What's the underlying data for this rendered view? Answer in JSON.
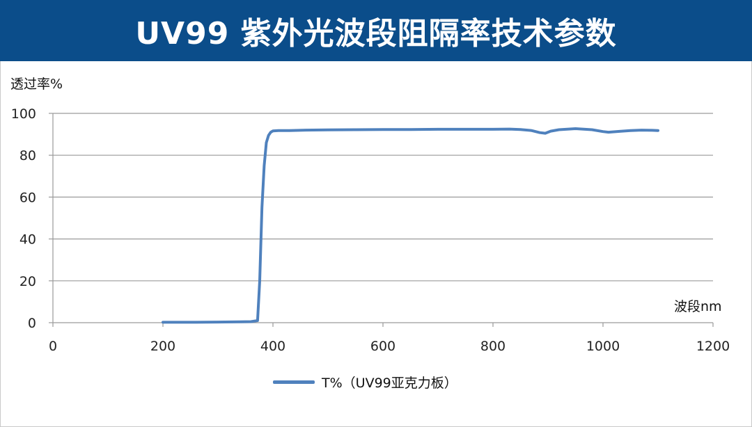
{
  "header": {
    "title": "UV99 紫外光波段阻隔率技术参数"
  },
  "chart_data": {
    "type": "line",
    "ylabel": "透过率%",
    "xlabel": "波段nm",
    "xlim": [
      0,
      1200
    ],
    "ylim": [
      0,
      100
    ],
    "xticks": [
      0,
      200,
      400,
      600,
      800,
      1000,
      1200
    ],
    "yticks": [
      0,
      20,
      40,
      60,
      80,
      100
    ],
    "grid": "horizontal",
    "legend_position": "bottom",
    "series": [
      {
        "name": "T%（UV99亚克力板）",
        "color": "#4f81bd",
        "x": [
          200,
          260,
          300,
          340,
          360,
          372,
          376,
          380,
          384,
          388,
          392,
          396,
          400,
          410,
          430,
          460,
          500,
          550,
          600,
          650,
          700,
          750,
          800,
          830,
          850,
          870,
          885,
          895,
          905,
          920,
          950,
          980,
          1000,
          1010,
          1030,
          1050,
          1070,
          1090,
          1100
        ],
        "y": [
          0.2,
          0.2,
          0.3,
          0.4,
          0.5,
          1,
          20,
          55,
          75,
          86,
          89.5,
          91,
          91.6,
          91.8,
          91.8,
          92,
          92.1,
          92.2,
          92.3,
          92.3,
          92.4,
          92.4,
          92.4,
          92.5,
          92.3,
          91.8,
          90.8,
          90.5,
          91.5,
          92.2,
          92.7,
          92.2,
          91.3,
          91.0,
          91.4,
          91.8,
          92.0,
          91.9,
          91.8
        ]
      }
    ]
  }
}
